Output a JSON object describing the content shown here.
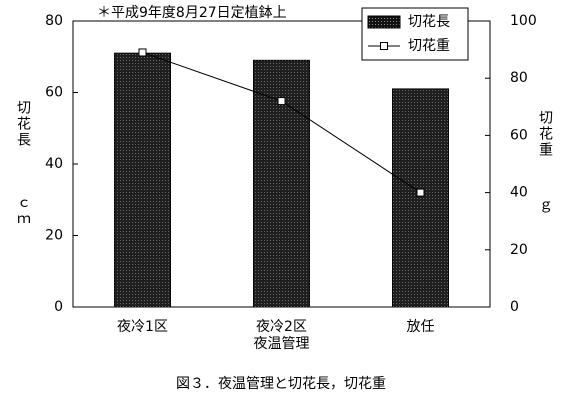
{
  "chart_data": {
    "type": "bar_line",
    "annotation": "＊平成9年度8月27日定植鉢上",
    "caption": "図３．夜温管理と切花長，切花重",
    "y_label": "切花長",
    "y_unit": "ｃｍ",
    "y2_label": "切花重",
    "y2_unit": "ｇ",
    "categories": [
      "夜冷1区",
      "夜冷2区\n夜温管理",
      "放任"
    ],
    "series": [
      {
        "name": "切花長",
        "type": "bar",
        "color": "#333333",
        "values": [
          71,
          69,
          61
        ]
      },
      {
        "name": "切花重",
        "type": "line",
        "axis": "y2",
        "color": "#000000",
        "values": [
          89,
          72,
          40
        ]
      }
    ],
    "ylim": [
      0,
      80
    ],
    "yticks": [
      0,
      20,
      40,
      60,
      80
    ],
    "y2lim": [
      0,
      100
    ],
    "y2ticks": [
      0,
      20,
      40,
      60,
      80,
      100
    ],
    "legend": "top-right"
  }
}
